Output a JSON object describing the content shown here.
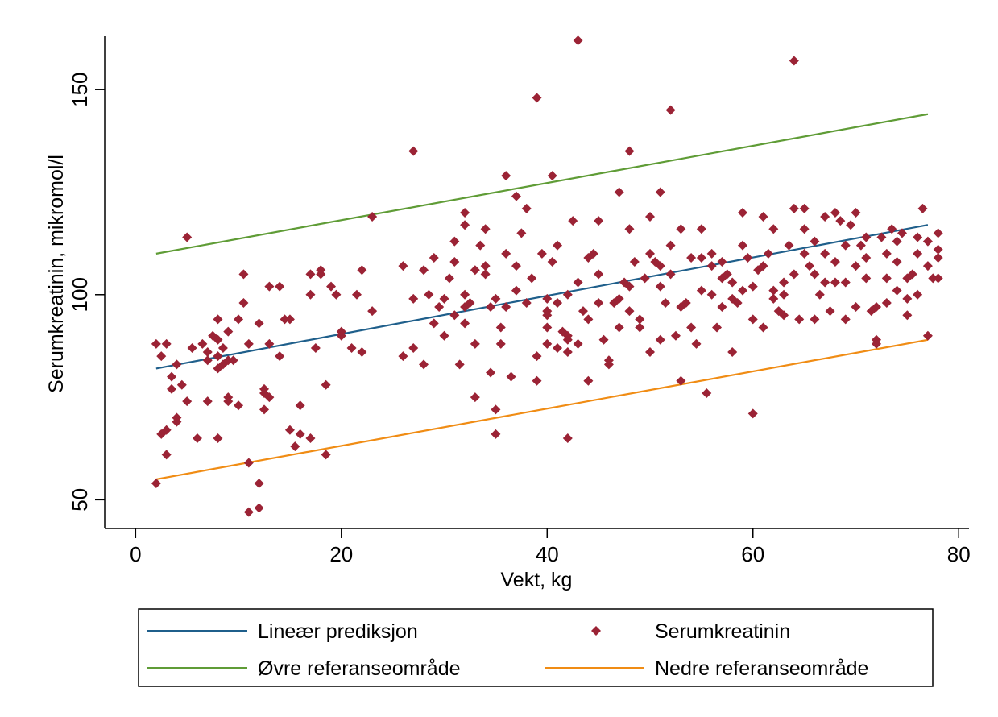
{
  "chart_data": {
    "type": "scatter",
    "xlabel": "Vekt, kg",
    "ylabel": "Serumkreatinin, mikromol/l",
    "xlim": [
      -3,
      81
    ],
    "ylim": [
      43,
      163
    ],
    "xticks": [
      0,
      20,
      40,
      60,
      80
    ],
    "yticks": [
      50,
      100,
      150
    ],
    "grid": false,
    "legend_position": "bottom",
    "colors": {
      "points": "#9b2335",
      "linear": "#1f5f8b",
      "upper": "#5f9c36",
      "lower": "#f08c14"
    },
    "lines": [
      {
        "name": "Lineær prediksjon",
        "key": "linear",
        "x": [
          2,
          77
        ],
        "y": [
          82,
          117
        ]
      },
      {
        "name": "Øvre referanseområde",
        "key": "upper",
        "x": [
          2,
          77
        ],
        "y": [
          110,
          144
        ]
      },
      {
        "name": "Nedre referanseområde",
        "key": "lower",
        "x": [
          2,
          77
        ],
        "y": [
          55,
          89
        ]
      }
    ],
    "scatter_series": {
      "name": "Serumkreatinin",
      "points": [
        [
          2,
          88
        ],
        [
          2,
          54
        ],
        [
          2.5,
          85
        ],
        [
          2.5,
          66
        ],
        [
          3,
          88
        ],
        [
          3,
          61
        ],
        [
          3,
          67
        ],
        [
          3.5,
          80
        ],
        [
          3.5,
          77
        ],
        [
          4,
          83
        ],
        [
          4,
          70
        ],
        [
          4,
          69
        ],
        [
          4.5,
          78
        ],
        [
          5,
          74
        ],
        [
          5,
          114
        ],
        [
          5.5,
          87
        ],
        [
          6,
          65
        ],
        [
          6.5,
          88
        ],
        [
          7,
          74
        ],
        [
          7,
          84
        ],
        [
          7,
          86
        ],
        [
          7.5,
          90
        ],
        [
          8,
          82
        ],
        [
          8,
          85
        ],
        [
          8,
          89
        ],
        [
          8,
          65
        ],
        [
          8,
          94
        ],
        [
          8.5,
          87
        ],
        [
          8.5,
          83
        ],
        [
          9,
          84
        ],
        [
          9,
          91
        ],
        [
          9,
          75
        ],
        [
          9,
          74
        ],
        [
          9.5,
          84
        ],
        [
          10,
          73
        ],
        [
          10,
          94
        ],
        [
          10.5,
          98
        ],
        [
          10.5,
          105
        ],
        [
          11,
          59
        ],
        [
          11,
          47
        ],
        [
          11,
          88
        ],
        [
          12,
          93
        ],
        [
          12,
          48
        ],
        [
          12,
          54
        ],
        [
          12.5,
          77
        ],
        [
          12.5,
          76
        ],
        [
          12.5,
          72
        ],
        [
          13,
          102
        ],
        [
          13,
          75
        ],
        [
          13,
          88
        ],
        [
          14,
          85
        ],
        [
          14,
          102
        ],
        [
          14.5,
          94
        ],
        [
          15,
          94
        ],
        [
          15,
          67
        ],
        [
          15.5,
          63
        ],
        [
          16,
          73
        ],
        [
          16,
          66
        ],
        [
          17,
          100
        ],
        [
          17,
          65
        ],
        [
          17,
          105
        ],
        [
          17.5,
          87
        ],
        [
          18,
          106
        ],
        [
          18,
          105
        ],
        [
          18.5,
          78
        ],
        [
          18.5,
          61
        ],
        [
          19,
          102
        ],
        [
          19.5,
          100
        ],
        [
          20,
          90
        ],
        [
          20,
          91
        ],
        [
          21,
          87
        ],
        [
          21.5,
          100
        ],
        [
          22,
          86
        ],
        [
          22,
          106
        ],
        [
          23,
          119
        ],
        [
          23,
          96
        ],
        [
          26,
          107
        ],
        [
          26,
          85
        ],
        [
          27,
          99
        ],
        [
          27,
          87
        ],
        [
          27,
          135
        ],
        [
          28,
          106
        ],
        [
          28,
          83
        ],
        [
          28.5,
          100
        ],
        [
          29,
          109
        ],
        [
          29,
          93
        ],
        [
          29.5,
          97
        ],
        [
          30,
          99
        ],
        [
          30,
          90
        ],
        [
          30.5,
          104
        ],
        [
          31,
          113
        ],
        [
          31,
          95
        ],
        [
          31,
          108
        ],
        [
          31.5,
          83
        ],
        [
          32,
          120
        ],
        [
          32,
          117
        ],
        [
          32,
          100
        ],
        [
          32,
          97
        ],
        [
          32,
          93
        ],
        [
          32.5,
          98
        ],
        [
          33,
          106
        ],
        [
          33,
          88
        ],
        [
          33,
          75
        ],
        [
          33.5,
          112
        ],
        [
          34,
          105
        ],
        [
          34,
          107
        ],
        [
          34,
          116
        ],
        [
          34.5,
          97
        ],
        [
          34.5,
          81
        ],
        [
          35,
          99
        ],
        [
          35,
          72
        ],
        [
          35,
          66
        ],
        [
          35.5,
          92
        ],
        [
          35.5,
          88
        ],
        [
          36,
          110
        ],
        [
          36,
          129
        ],
        [
          36,
          97
        ],
        [
          36.5,
          80
        ],
        [
          37,
          101
        ],
        [
          37,
          107
        ],
        [
          37,
          124
        ],
        [
          37.5,
          115
        ],
        [
          38,
          98
        ],
        [
          38,
          121
        ],
        [
          38.5,
          104
        ],
        [
          39,
          85
        ],
        [
          39,
          148
        ],
        [
          39,
          79
        ],
        [
          39.5,
          110
        ],
        [
          40,
          96
        ],
        [
          40,
          95
        ],
        [
          40,
          92
        ],
        [
          40,
          88
        ],
        [
          40,
          99
        ],
        [
          40.5,
          108
        ],
        [
          40.5,
          129
        ],
        [
          41,
          87
        ],
        [
          41,
          112
        ],
        [
          41,
          98
        ],
        [
          41.5,
          91
        ],
        [
          42,
          89
        ],
        [
          42,
          100
        ],
        [
          42,
          86
        ],
        [
          42,
          90
        ],
        [
          42,
          65
        ],
        [
          42.5,
          118
        ],
        [
          43,
          103
        ],
        [
          43,
          162
        ],
        [
          43,
          88
        ],
        [
          43.5,
          96
        ],
        [
          44,
          109
        ],
        [
          44,
          94
        ],
        [
          44,
          79
        ],
        [
          44.5,
          110
        ],
        [
          45,
          118
        ],
        [
          45,
          98
        ],
        [
          45,
          105
        ],
        [
          45.5,
          89
        ],
        [
          46,
          83
        ],
        [
          46,
          84
        ],
        [
          46.5,
          98
        ],
        [
          47,
          125
        ],
        [
          47,
          99
        ],
        [
          47,
          92
        ],
        [
          47.5,
          103
        ],
        [
          48,
          102
        ],
        [
          48,
          96
        ],
        [
          48,
          116
        ],
        [
          48,
          135
        ],
        [
          48.5,
          108
        ],
        [
          49,
          92
        ],
        [
          49,
          94
        ],
        [
          49.5,
          104
        ],
        [
          50,
          86
        ],
        [
          50,
          119
        ],
        [
          50,
          110
        ],
        [
          50.5,
          108
        ],
        [
          51,
          102
        ],
        [
          51,
          107
        ],
        [
          51,
          125
        ],
        [
          51,
          89
        ],
        [
          51.5,
          98
        ],
        [
          52,
          105
        ],
        [
          52,
          112
        ],
        [
          52,
          145
        ],
        [
          52.5,
          90
        ],
        [
          53,
          79
        ],
        [
          53,
          116
        ],
        [
          53,
          97
        ],
        [
          53.5,
          98
        ],
        [
          54,
          109
        ],
        [
          54,
          92
        ],
        [
          54.5,
          88
        ],
        [
          55,
          116
        ],
        [
          55,
          101
        ],
        [
          55,
          109
        ],
        [
          55.5,
          76
        ],
        [
          56,
          110
        ],
        [
          56,
          107
        ],
        [
          56,
          100
        ],
        [
          56.5,
          92
        ],
        [
          57,
          97
        ],
        [
          57,
          108
        ],
        [
          57,
          104
        ],
        [
          57.5,
          105
        ],
        [
          58,
          103
        ],
        [
          58,
          99
        ],
        [
          58,
          86
        ],
        [
          58.5,
          98
        ],
        [
          59,
          101
        ],
        [
          59,
          112
        ],
        [
          59,
          120
        ],
        [
          59.5,
          109
        ],
        [
          60,
          102
        ],
        [
          60,
          71
        ],
        [
          60,
          94
        ],
        [
          60.5,
          106
        ],
        [
          61,
          119
        ],
        [
          61,
          107
        ],
        [
          61,
          92
        ],
        [
          61.5,
          110
        ],
        [
          62,
          101
        ],
        [
          62,
          116
        ],
        [
          62,
          99
        ],
        [
          62.5,
          96
        ],
        [
          63,
          100
        ],
        [
          63,
          95
        ],
        [
          63,
          103
        ],
        [
          63.5,
          112
        ],
        [
          64,
          157
        ],
        [
          64,
          121
        ],
        [
          64,
          105
        ],
        [
          64.5,
          94
        ],
        [
          65,
          110
        ],
        [
          65,
          121
        ],
        [
          65,
          116
        ],
        [
          65.5,
          107
        ],
        [
          66,
          113
        ],
        [
          66,
          94
        ],
        [
          66,
          105
        ],
        [
          66.5,
          100
        ],
        [
          67,
          103
        ],
        [
          67,
          110
        ],
        [
          67,
          119
        ],
        [
          67.5,
          96
        ],
        [
          68,
          120
        ],
        [
          68,
          108
        ],
        [
          68,
          103
        ],
        [
          68.5,
          118
        ],
        [
          69,
          103
        ],
        [
          69,
          94
        ],
        [
          69,
          112
        ],
        [
          69.5,
          117
        ],
        [
          70,
          120
        ],
        [
          70,
          107
        ],
        [
          70,
          97
        ],
        [
          70.5,
          112
        ],
        [
          71,
          114
        ],
        [
          71,
          109
        ],
        [
          71,
          104
        ],
        [
          71.5,
          96
        ],
        [
          72,
          89
        ],
        [
          72,
          97
        ],
        [
          72,
          88
        ],
        [
          72.5,
          114
        ],
        [
          73,
          110
        ],
        [
          73,
          104
        ],
        [
          73,
          98
        ],
        [
          73.5,
          116
        ],
        [
          74,
          113
        ],
        [
          74,
          108
        ],
        [
          74,
          101
        ],
        [
          74.5,
          115
        ],
        [
          75,
          95
        ],
        [
          75,
          99
        ],
        [
          75,
          104
        ],
        [
          75.5,
          105
        ],
        [
          76,
          114
        ],
        [
          76,
          110
        ],
        [
          76,
          100
        ],
        [
          76.5,
          121
        ],
        [
          77,
          90
        ],
        [
          77,
          113
        ],
        [
          77,
          107
        ],
        [
          77.5,
          104
        ],
        [
          78,
          115
        ],
        [
          78,
          109
        ],
        [
          78,
          111
        ],
        [
          78,
          104
        ]
      ]
    }
  }
}
